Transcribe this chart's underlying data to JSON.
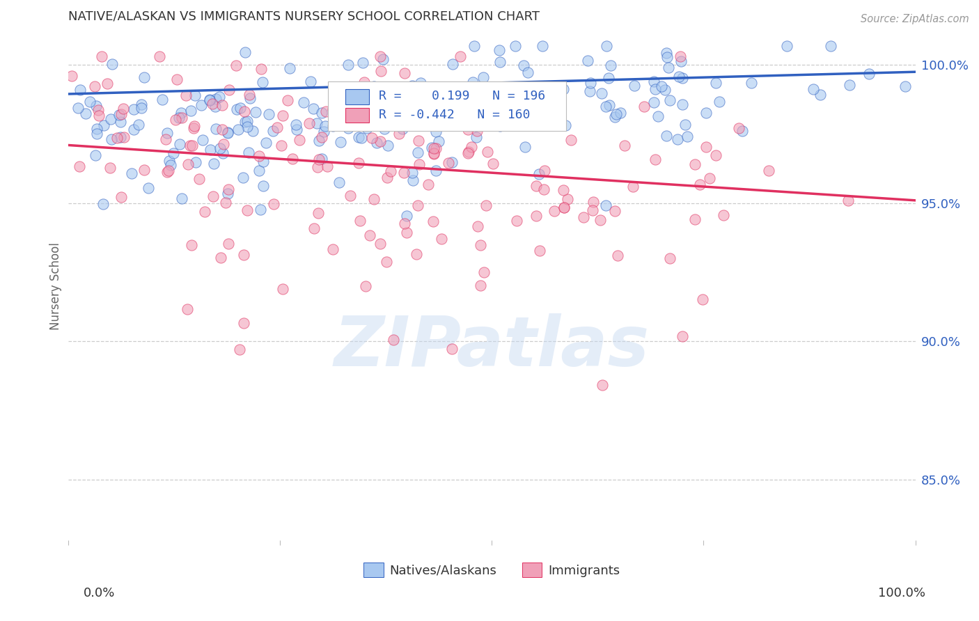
{
  "title": "NATIVE/ALASKAN VS IMMIGRANTS NURSERY SCHOOL CORRELATION CHART",
  "source": "Source: ZipAtlas.com",
  "ylabel": "Nursery School",
  "ytick_labels": [
    "85.0%",
    "90.0%",
    "95.0%",
    "100.0%"
  ],
  "ytick_values": [
    0.85,
    0.9,
    0.95,
    1.0
  ],
  "xlim": [
    0.0,
    1.0
  ],
  "ylim": [
    0.828,
    1.012
  ],
  "blue_R": 0.199,
  "blue_N": 196,
  "pink_R": -0.442,
  "pink_N": 160,
  "blue_color": "#a8c8f0",
  "pink_color": "#f0a0b8",
  "blue_line_color": "#3060c0",
  "pink_line_color": "#e03060",
  "legend_label_blue": "Natives/Alaskans",
  "legend_label_pink": "Immigrants",
  "background_color": "#ffffff",
  "grid_color": "#cccccc",
  "blue_line_start_y": 0.9895,
  "blue_line_end_y": 0.9975,
  "pink_line_start_y": 0.971,
  "pink_line_end_y": 0.951
}
